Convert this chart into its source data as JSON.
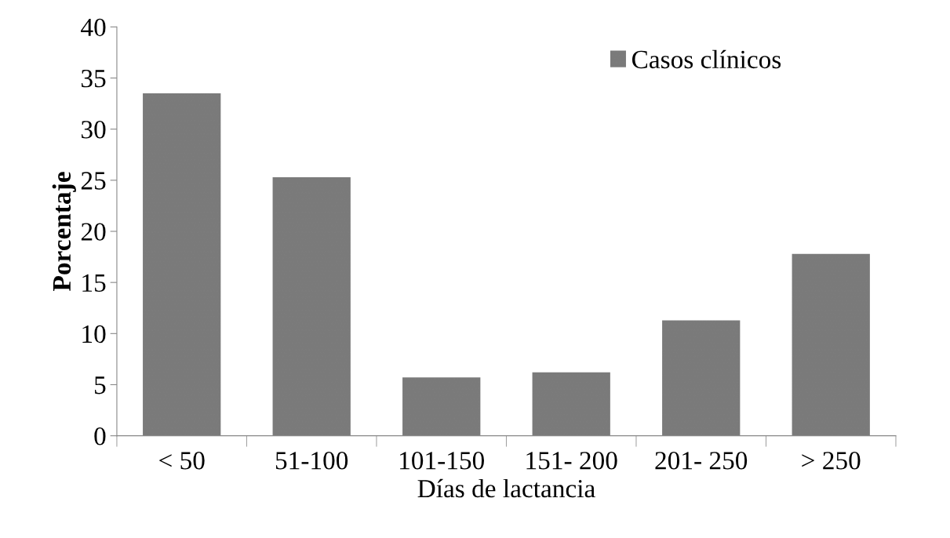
{
  "chart_data": {
    "type": "bar",
    "xlabel": "Días de lactancia",
    "ylabel": "Porcentaje",
    "categories": [
      "< 50",
      "51-100",
      "101-150",
      "151- 200",
      "201- 250",
      "> 250"
    ],
    "series": [
      {
        "name": "Casos clínicos",
        "color": "#7a7a7a",
        "values": [
          33.5,
          25.3,
          5.7,
          6.2,
          11.3,
          17.8
        ]
      }
    ],
    "ylim": [
      0,
      40
    ],
    "yticks": [
      0,
      5,
      10,
      15,
      20,
      25,
      30,
      35,
      40
    ],
    "grid": false,
    "legend": "top right"
  }
}
